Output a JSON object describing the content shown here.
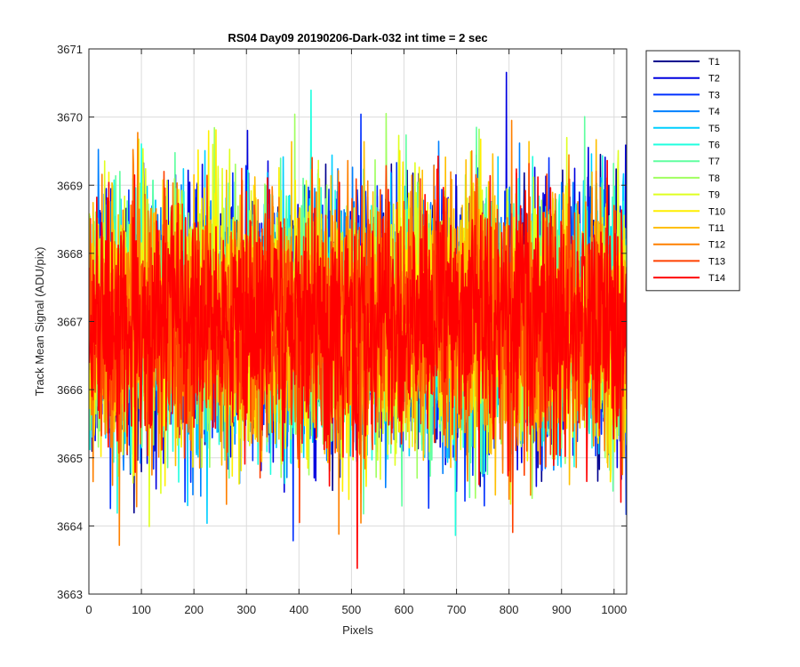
{
  "chart_data": {
    "type": "line",
    "title": "RS04 Day09 20190206-Dark-032 int time = 2 sec",
    "xlabel": "Pixels",
    "ylabel": "Track Mean Signal (ADU/pix)",
    "xlim": [
      0,
      1024
    ],
    "ylim": [
      3663,
      3671
    ],
    "xticks": [
      0,
      100,
      200,
      300,
      400,
      500,
      600,
      700,
      800,
      900,
      1000
    ],
    "yticks": [
      3663,
      3664,
      3665,
      3666,
      3667,
      3668,
      3669,
      3670,
      3671
    ],
    "grid": true,
    "legend_position": "outside-top-right",
    "x": {
      "start": 1,
      "end": 1024,
      "step": 1
    },
    "noise_model": {
      "mean": 3667.0,
      "std_dev": 0.95,
      "min_observed": 3663.1,
      "max_observed": 3670.9
    },
    "series": [
      {
        "name": "T1",
        "color": "#00008f",
        "mean": 3667.0,
        "std": 0.9
      },
      {
        "name": "T2",
        "color": "#0000df",
        "mean": 3667.0,
        "std": 0.9
      },
      {
        "name": "T3",
        "color": "#0030ff",
        "mean": 3667.0,
        "std": 0.9
      },
      {
        "name": "T4",
        "color": "#0080ff",
        "mean": 3667.0,
        "std": 0.9
      },
      {
        "name": "T5",
        "color": "#00cfff",
        "mean": 3667.0,
        "std": 0.9
      },
      {
        "name": "T6",
        "color": "#20ffdf",
        "mean": 3667.0,
        "std": 0.9
      },
      {
        "name": "T7",
        "color": "#60ffa0",
        "mean": 3667.0,
        "std": 0.9
      },
      {
        "name": "T8",
        "color": "#a0ff60",
        "mean": 3667.0,
        "std": 0.9
      },
      {
        "name": "T9",
        "color": "#dfff20",
        "mean": 3667.0,
        "std": 0.9
      },
      {
        "name": "T10",
        "color": "#ffef00",
        "mean": 3667.0,
        "std": 0.9
      },
      {
        "name": "T11",
        "color": "#ffbf00",
        "mean": 3667.0,
        "std": 0.9
      },
      {
        "name": "T12",
        "color": "#ff8000",
        "mean": 3667.0,
        "std": 0.9
      },
      {
        "name": "T13",
        "color": "#ff4000",
        "mean": 3667.0,
        "std": 0.9
      },
      {
        "name": "T14",
        "color": "#ff0000",
        "mean": 3667.0,
        "std": 0.9
      }
    ]
  }
}
